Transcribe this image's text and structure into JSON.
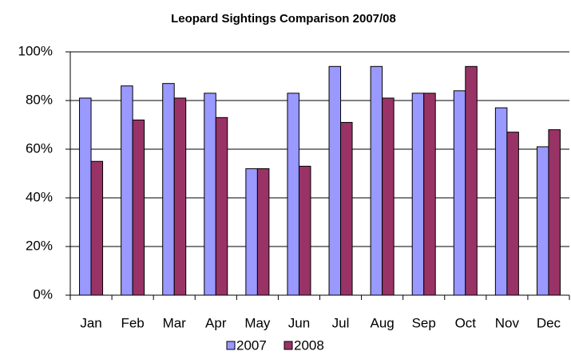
{
  "chart_data": {
    "type": "bar",
    "title": "Leopard Sightings Comparison 2007/08",
    "categories": [
      "Jan",
      "Feb",
      "Mar",
      "Apr",
      "May",
      "Jun",
      "Jul",
      "Aug",
      "Sep",
      "Oct",
      "Nov",
      "Dec"
    ],
    "series": [
      {
        "name": "2007",
        "color": "#9999ff",
        "values": [
          81,
          86,
          87,
          83,
          52,
          83,
          94,
          94,
          83,
          84,
          77,
          61
        ]
      },
      {
        "name": "2008",
        "color": "#993366",
        "values": [
          55,
          72,
          81,
          73,
          52,
          53,
          71,
          81,
          83,
          94,
          67,
          68
        ]
      }
    ],
    "ylim": [
      0,
      100
    ],
    "yticks": [
      {
        "value": 0,
        "label": "0%"
      },
      {
        "value": 20,
        "label": "20%"
      },
      {
        "value": 40,
        "label": "40%"
      },
      {
        "value": 60,
        "label": "60%"
      },
      {
        "value": 80,
        "label": "80%"
      },
      {
        "value": 100,
        "label": "100%"
      }
    ],
    "grid": true,
    "legend": "bottom"
  }
}
